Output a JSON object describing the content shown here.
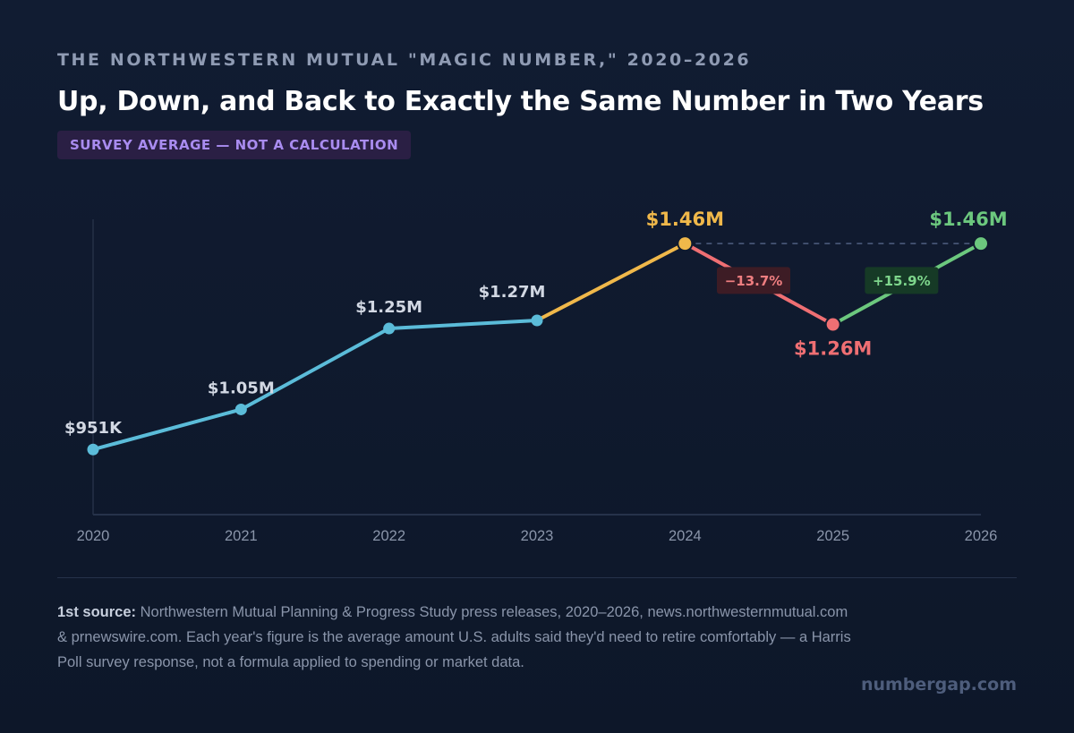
{
  "header": {
    "eyebrow": "THE NORTHWESTERN MUTUAL \"MAGIC NUMBER,\" 2020–2026",
    "title": "Up, Down, and Back to Exactly the Same Number in Two Years",
    "badge": "SURVEY AVERAGE — NOT A CALCULATION"
  },
  "chart_data": {
    "type": "line",
    "x": [
      "2020",
      "2021",
      "2022",
      "2023",
      "2024",
      "2025",
      "2026"
    ],
    "values": [
      0.951,
      1.05,
      1.25,
      1.27,
      1.46,
      1.26,
      1.46
    ],
    "point_labels": [
      "$951K",
      "$1.05M",
      "$1.25M",
      "$1.27M",
      "$1.46M",
      "$1.26M",
      "$1.46M"
    ],
    "ylim": [
      0.79,
      1.52
    ],
    "grid": false,
    "reference_line": {
      "value": 1.46,
      "from": "2024",
      "to": "2026",
      "style": "dashed"
    },
    "segments": [
      {
        "from": "2020",
        "to": "2023",
        "color": "#5bbcd9"
      },
      {
        "from": "2023",
        "to": "2024",
        "color": "#f0b84a"
      },
      {
        "from": "2024",
        "to": "2025",
        "color": "#ef6f73"
      },
      {
        "from": "2025",
        "to": "2026",
        "color": "#6cc87e"
      }
    ],
    "point_colors": [
      "#5bbcd9",
      "#5bbcd9",
      "#5bbcd9",
      "#5bbcd9",
      "#f0b84a",
      "#ef6f73",
      "#6cc87e"
    ],
    "label_colors": [
      "#d2d8e3",
      "#d2d8e3",
      "#d2d8e3",
      "#d2d8e3",
      "#f0b84a",
      "#ef6f73",
      "#6cc87e"
    ],
    "change_annotations": [
      {
        "text": "−13.7%",
        "from": "2024",
        "to": "2025",
        "text_color": "#ef7e80",
        "bg": "#3d1c25"
      },
      {
        "text": "+15.9%",
        "from": "2025",
        "to": "2026",
        "text_color": "#7ed68c",
        "bg": "#163a26"
      }
    ]
  },
  "footer": {
    "source_label": "1st source:",
    "source_text": "Northwestern Mutual Planning & Progress Study press releases, 2020–2026, news.northwesternmutual.com & prnewswire.com. Each year's figure is the average amount U.S. adults said they'd need to retire comfortably — a Harris Poll survey response, not a formula applied to spending or market data.",
    "brand": "numbergap.com"
  }
}
